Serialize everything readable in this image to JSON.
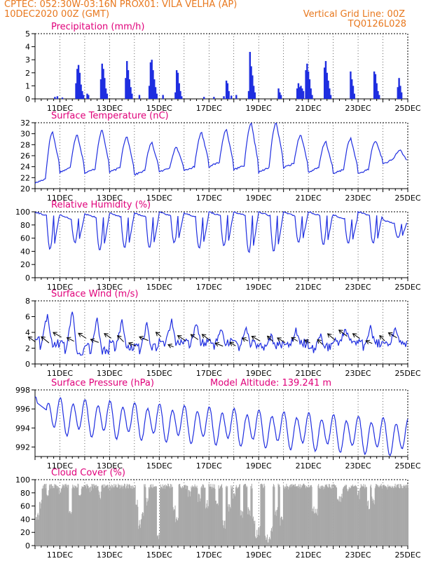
{
  "header": {
    "line1": "CPTEC:  052:30W-03:16N  PROX01: VILA VELHA (AP)",
    "line2_left": "10DEC2020 00Z (GMT)",
    "line2_right": "Vertical Grid Line: 00Z",
    "line3_right": "TQ0126L028"
  },
  "colors": {
    "header": "#e8781e",
    "title": "#e0007a",
    "series": "#1f2ee0",
    "cloud": "#a8a8a8"
  },
  "x_axis": {
    "unit": "day_of_december",
    "labels": [
      "11DEC",
      "13DEC",
      "15DEC",
      "17DEC",
      "19DEC",
      "21DEC",
      "23DEC",
      "25DEC"
    ]
  },
  "chart_data": [
    {
      "id": "precip",
      "type": "bar",
      "title": "Precipitation (mm/h)",
      "xlim": [
        10,
        25
      ],
      "ylim": [
        0,
        5
      ],
      "yticks": [
        0,
        1,
        2,
        3,
        4,
        5
      ],
      "events": [
        [
          10.8,
          0.15
        ],
        [
          10.9,
          0.2
        ],
        [
          11.1,
          0.1
        ],
        [
          11.65,
          1.2
        ],
        [
          11.7,
          2.3
        ],
        [
          11.75,
          2.6
        ],
        [
          11.8,
          2.0
        ],
        [
          11.85,
          1.1
        ],
        [
          11.9,
          0.6
        ],
        [
          11.95,
          0.3
        ],
        [
          12.1,
          0.4
        ],
        [
          12.15,
          0.3
        ],
        [
          12.65,
          1.5
        ],
        [
          12.7,
          2.7
        ],
        [
          12.75,
          2.3
        ],
        [
          12.8,
          1.6
        ],
        [
          12.85,
          0.8
        ],
        [
          12.9,
          0.4
        ],
        [
          13.65,
          1.6
        ],
        [
          13.7,
          2.9
        ],
        [
          13.75,
          2.2
        ],
        [
          13.8,
          1.5
        ],
        [
          13.85,
          0.9
        ],
        [
          13.9,
          0.4
        ],
        [
          14.2,
          0.3
        ],
        [
          14.6,
          1.0
        ],
        [
          14.65,
          2.8
        ],
        [
          14.7,
          3.0
        ],
        [
          14.75,
          2.2
        ],
        [
          14.8,
          1.5
        ],
        [
          14.85,
          0.9
        ],
        [
          14.9,
          0.4
        ],
        [
          15.15,
          0.3
        ],
        [
          15.65,
          0.5
        ],
        [
          15.7,
          2.2
        ],
        [
          15.75,
          2.0
        ],
        [
          15.8,
          1.2
        ],
        [
          15.85,
          0.6
        ],
        [
          15.9,
          0.2
        ],
        [
          16.8,
          0.15
        ],
        [
          17.2,
          0.15
        ],
        [
          17.6,
          0.2
        ],
        [
          17.7,
          1.4
        ],
        [
          17.75,
          1.2
        ],
        [
          17.8,
          0.6
        ],
        [
          17.9,
          0.25
        ],
        [
          18.1,
          0.3
        ],
        [
          18.6,
          0.6
        ],
        [
          18.65,
          3.6
        ],
        [
          18.7,
          2.5
        ],
        [
          18.75,
          1.8
        ],
        [
          18.8,
          1.0
        ],
        [
          18.85,
          0.5
        ],
        [
          19.8,
          0.8
        ],
        [
          19.85,
          0.5
        ],
        [
          19.9,
          0.3
        ],
        [
          20.55,
          0.8
        ],
        [
          20.6,
          1.2
        ],
        [
          20.65,
          0.9
        ],
        [
          20.7,
          1.0
        ],
        [
          20.75,
          0.8
        ],
        [
          20.8,
          0.6
        ],
        [
          20.9,
          2.2
        ],
        [
          20.95,
          2.7
        ],
        [
          21.0,
          2.1
        ],
        [
          21.05,
          1.5
        ],
        [
          21.1,
          0.8
        ],
        [
          21.15,
          0.3
        ],
        [
          21.65,
          2.4
        ],
        [
          21.7,
          2.9
        ],
        [
          21.75,
          2.0
        ],
        [
          21.8,
          1.4
        ],
        [
          21.85,
          0.8
        ],
        [
          21.9,
          0.3
        ],
        [
          22.7,
          2.1
        ],
        [
          22.75,
          1.5
        ],
        [
          22.8,
          1.0
        ],
        [
          22.85,
          0.4
        ],
        [
          23.65,
          2.1
        ],
        [
          23.7,
          1.9
        ],
        [
          23.75,
          1.2
        ],
        [
          23.8,
          0.6
        ],
        [
          23.85,
          0.3
        ],
        [
          24.6,
          0.9
        ],
        [
          24.65,
          1.6
        ],
        [
          24.7,
          1.0
        ],
        [
          24.75,
          0.5
        ]
      ]
    },
    {
      "id": "temp",
      "type": "line",
      "title": "Surface Temperature (nC)",
      "xlim": [
        10,
        25
      ],
      "ylim": [
        20,
        32
      ],
      "yticks": [
        20,
        22,
        24,
        26,
        28,
        30,
        32
      ],
      "daily_max": [
        30.3,
        29.8,
        30.6,
        29.5,
        28.3,
        27.5,
        30.2,
        30.7,
        31.8,
        32.0,
        29.8,
        28.5,
        29.1,
        28.7,
        27.0
      ],
      "daily_min": [
        21.0,
        23.0,
        22.8,
        23.0,
        22.5,
        23.0,
        23.2,
        24.0,
        23.4,
        23.0,
        23.8,
        23.0,
        22.7,
        22.7,
        24.5
      ]
    },
    {
      "id": "rh",
      "type": "line",
      "title": "Relative Humidity (%)",
      "xlim": [
        10,
        25
      ],
      "ylim": [
        0,
        100
      ],
      "yticks": [
        0,
        20,
        40,
        60,
        80,
        100
      ],
      "daily_max": [
        100,
        95,
        97,
        98,
        98,
        100,
        98,
        100,
        100,
        100,
        100,
        100,
        95,
        100,
        88
      ],
      "daily_min": [
        43,
        53,
        42,
        45,
        45,
        53,
        45,
        48,
        38,
        40,
        53,
        50,
        52,
        52,
        60
      ]
    },
    {
      "id": "wind",
      "type": "line",
      "title": "Surface Wind (m/s)",
      "xlim": [
        10,
        25
      ],
      "ylim": [
        0,
        8
      ],
      "yticks": [
        0,
        2,
        4,
        6,
        8
      ],
      "daily_peak": [
        6.4,
        7.0,
        5.9,
        5.5,
        5.0,
        5.5,
        5.1,
        4.4,
        4.3,
        3.6,
        4.2,
        3.8,
        4.6,
        4.8,
        4.7
      ],
      "daily_low": [
        2.0,
        1.0,
        1.0,
        1.5,
        1.5,
        2.0,
        2.0,
        2.2,
        2.0,
        1.8,
        2.0,
        1.5,
        2.3,
        2.0,
        2.0
      ],
      "vector_times": [
        10.05,
        10.6,
        11.1,
        11.6,
        12.1,
        12.6,
        13.1,
        13.6,
        14.1,
        14.6,
        15.1,
        15.6,
        16.1,
        16.6,
        17.1,
        17.6,
        18.1,
        18.6,
        19.1,
        19.6,
        20.1,
        20.6,
        21.1,
        21.6,
        22.1,
        22.6,
        23.1,
        23.6,
        24.1,
        24.6
      ]
    },
    {
      "id": "pressure",
      "type": "line",
      "title": "Surface Pressure (hPa)",
      "annotation": "Model Altitude: 139.241 m",
      "xlim": [
        10,
        25
      ],
      "ylim": [
        991,
        998
      ],
      "yticks": [
        992,
        994,
        996,
        998
      ],
      "mean_start": 995.4,
      "mean_end": 993.0
    },
    {
      "id": "cloud",
      "type": "bar",
      "title": "Cloud Cover (%)",
      "xlim": [
        10,
        25
      ],
      "ylim": [
        0,
        100
      ],
      "yticks": [
        0,
        20,
        40,
        60,
        80,
        100
      ],
      "dips": [
        [
          10.0,
          40
        ],
        [
          10.1,
          38
        ],
        [
          10.2,
          55
        ],
        [
          10.5,
          70
        ],
        [
          11.0,
          78
        ],
        [
          11.4,
          45
        ],
        [
          11.8,
          75
        ],
        [
          12.2,
          80
        ],
        [
          12.6,
          70
        ],
        [
          13.0,
          82
        ],
        [
          14.1,
          55
        ],
        [
          14.2,
          25
        ],
        [
          14.3,
          40
        ],
        [
          14.5,
          60
        ],
        [
          14.95,
          5
        ],
        [
          15.6,
          50
        ],
        [
          15.7,
          30
        ],
        [
          16.2,
          70
        ],
        [
          16.6,
          65
        ],
        [
          16.9,
          55
        ],
        [
          17.3,
          60
        ],
        [
          17.6,
          25
        ],
        [
          17.8,
          50
        ],
        [
          18.0,
          65
        ],
        [
          18.3,
          40
        ],
        [
          18.6,
          45
        ],
        [
          18.8,
          30
        ],
        [
          18.9,
          10
        ],
        [
          19.0,
          15
        ],
        [
          19.3,
          5
        ],
        [
          19.4,
          0
        ],
        [
          19.5,
          15
        ],
        [
          19.7,
          45
        ],
        [
          19.9,
          30
        ],
        [
          20.2,
          85
        ],
        [
          20.6,
          90
        ],
        [
          21.2,
          45
        ],
        [
          21.3,
          45
        ],
        [
          21.6,
          85
        ],
        [
          22.2,
          60
        ],
        [
          22.3,
          65
        ],
        [
          22.6,
          80
        ],
        [
          23.0,
          70
        ],
        [
          23.4,
          55
        ],
        [
          23.6,
          60
        ],
        [
          24.2,
          85
        ],
        [
          24.8,
          90
        ]
      ]
    }
  ]
}
